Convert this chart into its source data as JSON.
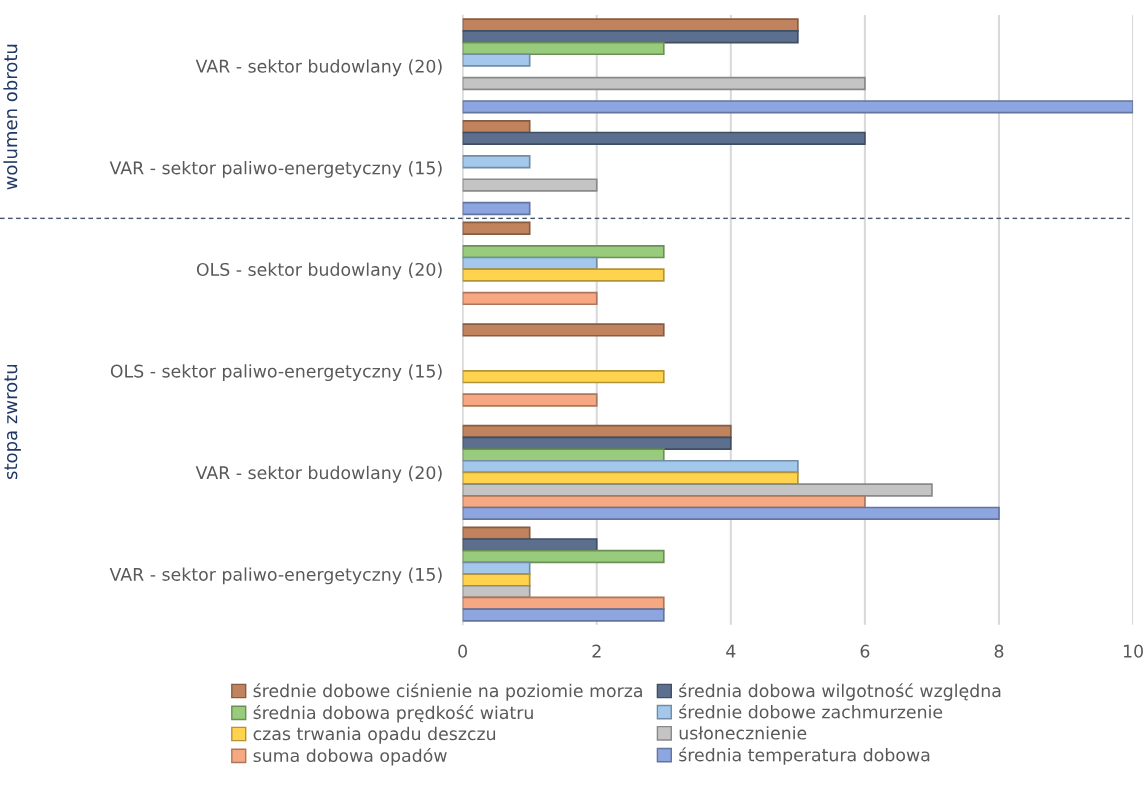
{
  "chart_data": {
    "type": "bar",
    "orientation": "horizontal",
    "categories": [
      "VAR - sektor budowlany (20)",
      "VAR - sektor paliwo-energetyczny (15)",
      "OLS - sektor budowlany (20)",
      "OLS - sektor paliwo-energetyczny (15)",
      "VAR - sektor budowlany (20)",
      "VAR - sektor paliwo-energetyczny (15)"
    ],
    "series": [
      {
        "name": "średnie dobowe ciśnienie na poziomie morza",
        "color": "#c0835e",
        "values": [
          5,
          1,
          1,
          3,
          4,
          1
        ]
      },
      {
        "name": "średnia dobowa wilgotność względna",
        "color": "#5c6f8e",
        "values": [
          5,
          6,
          null,
          null,
          4,
          2
        ]
      },
      {
        "name": "średnia dobowa prędkość wiatru",
        "color": "#98cc7c",
        "values": [
          3,
          null,
          3,
          null,
          3,
          3
        ]
      },
      {
        "name": "średnie dobowe zachmurzenie",
        "color": "#a3c8ec",
        "values": [
          1,
          1,
          2,
          null,
          5,
          1
        ]
      },
      {
        "name": "czas trwania opadu deszczu",
        "color": "#ffd34d",
        "values": [
          null,
          null,
          3,
          3,
          5,
          1
        ]
      },
      {
        "name": "usłonecznienie",
        "color": "#c4c4c4",
        "values": [
          6,
          2,
          null,
          null,
          7,
          1
        ]
      },
      {
        "name": "suma dobowa opadów",
        "color": "#f5a882",
        "values": [
          null,
          null,
          2,
          2,
          6,
          3
        ]
      },
      {
        "name": "średnia temperatura dobowa",
        "color": "#8ea6e0",
        "values": [
          10,
          1,
          null,
          null,
          8,
          3
        ]
      }
    ],
    "xlim": [
      0,
      10
    ],
    "xticks": [
      0,
      2,
      4,
      6,
      8,
      10
    ],
    "grid": "x",
    "legend": "bottom",
    "annotations": [
      "wolumen obrotu",
      "stopa zwrotu"
    ]
  }
}
